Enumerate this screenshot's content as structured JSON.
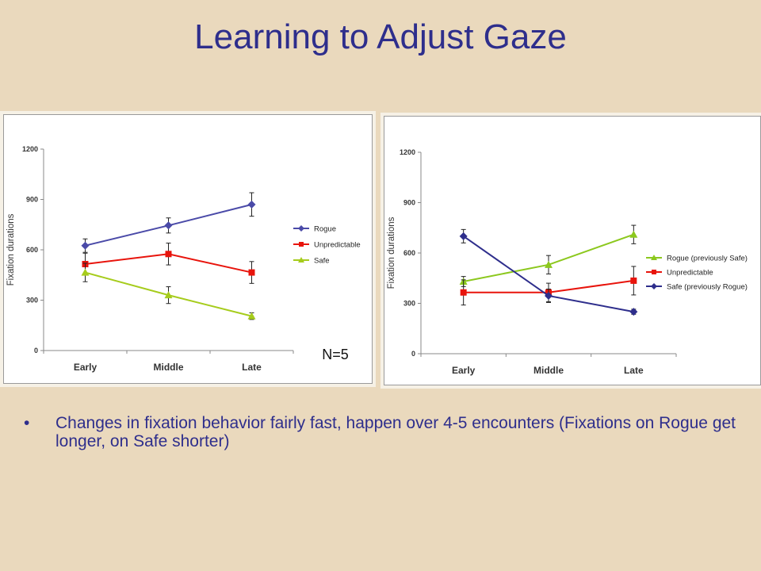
{
  "slide": {
    "title": "Learning to Adjust Gaze",
    "bullets": [
      "Changes in fixation behavior fairly fast, happen over 4-5 encounters (Fixations on Rogue get longer, on Safe shorter)"
    ]
  },
  "chart_data": [
    {
      "type": "line",
      "title": "",
      "xlabel": "",
      "ylabel": "Fixation durations",
      "categories": [
        "Early",
        "Middle",
        "Late"
      ],
      "ylim": [
        0,
        1200
      ],
      "yticks": [
        0,
        300,
        600,
        900,
        1200
      ],
      "grid": false,
      "legend": "right",
      "annotation": "N=5",
      "series": [
        {
          "name": "Rogue",
          "color": "#4a4aa8",
          "marker": "diamond",
          "values": [
            625,
            745,
            870
          ],
          "errors": [
            40,
            45,
            70
          ]
        },
        {
          "name": "Unpredictable",
          "color": "#e8140c",
          "marker": "square",
          "values": [
            515,
            575,
            465
          ],
          "errors": [
            65,
            65,
            65
          ]
        },
        {
          "name": "Safe",
          "color": "#a6cc1c",
          "marker": "triangle",
          "values": [
            465,
            330,
            205
          ],
          "errors": [
            55,
            50,
            20
          ]
        }
      ]
    },
    {
      "type": "line",
      "title": "",
      "xlabel": "",
      "ylabel": "Fixation durations",
      "categories": [
        "Early",
        "Middle",
        "Late"
      ],
      "ylim": [
        0,
        1200
      ],
      "yticks": [
        0,
        300,
        600,
        900,
        1200
      ],
      "grid": false,
      "legend": "right",
      "series": [
        {
          "name": "Rogue (previously Safe)",
          "color": "#8cc81e",
          "marker": "triangle",
          "values": [
            430,
            530,
            710
          ],
          "errors": [
            30,
            55,
            55
          ]
        },
        {
          "name": "Unpredictable",
          "color": "#e8140c",
          "marker": "square",
          "values": [
            365,
            365,
            435
          ],
          "errors": [
            75,
            55,
            85
          ]
        },
        {
          "name": "Safe (previously Rogue)",
          "color": "#2e2e8c",
          "marker": "diamond",
          "values": [
            700,
            345,
            250
          ],
          "errors": [
            40,
            40,
            15
          ]
        }
      ]
    }
  ]
}
